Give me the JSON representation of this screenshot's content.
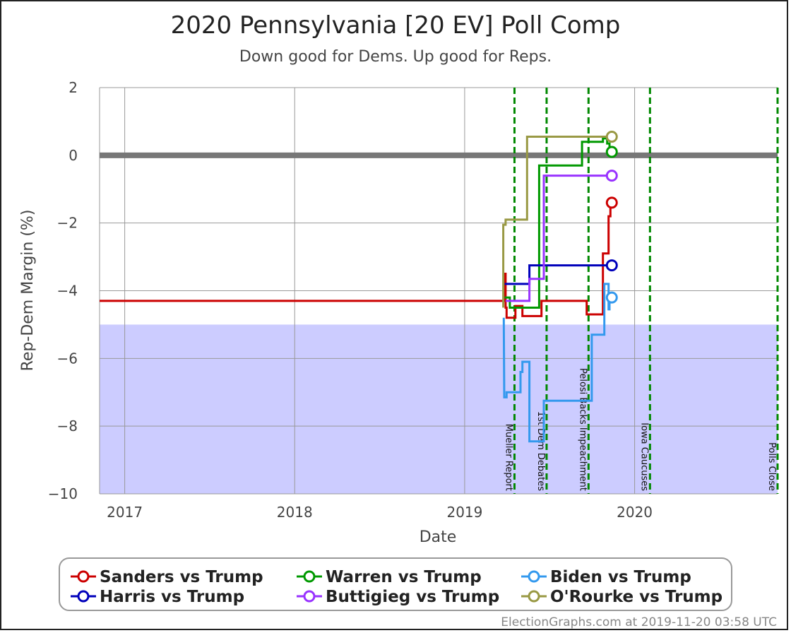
{
  "chart_data": {
    "type": "line",
    "title": "2020 Pennsylvania [20 EV] Poll Comp",
    "subtitle": "Down good for Dems. Up good for Reps.",
    "xlabel": "Date",
    "ylabel": "Rep-Dem Margin (%)",
    "xlim": [
      "2016-11-08",
      "2020-11-03"
    ],
    "ylim": [
      -10,
      2
    ],
    "x_ticks": [
      {
        "date": "2017-01-01",
        "label": "2017"
      },
      {
        "date": "2018-01-01",
        "label": "2018"
      },
      {
        "date": "2019-01-01",
        "label": "2019"
      },
      {
        "date": "2020-01-01",
        "label": "2020"
      }
    ],
    "y_ticks": [
      {
        "value": 2,
        "label": "2"
      },
      {
        "value": 0,
        "label": "0"
      },
      {
        "value": -2,
        "label": "−2"
      },
      {
        "value": -4,
        "label": "−4"
      },
      {
        "value": -6,
        "label": "−6"
      },
      {
        "value": -8,
        "label": "−8"
      },
      {
        "value": -10,
        "label": "−10"
      }
    ],
    "shaded_region": {
      "from": -10,
      "to": -5,
      "color": "#ccccff"
    },
    "zero_line_color": "#777777",
    "grid": true,
    "events": [
      {
        "date": "2019-04-18",
        "label": "Mueller Report"
      },
      {
        "date": "2019-06-26",
        "label": "1st Dem Debates"
      },
      {
        "date": "2019-09-24",
        "label": "Pelosi Backs Impeachment"
      },
      {
        "date": "2020-02-03",
        "label": "Iowa Caucuses"
      },
      {
        "date": "2020-11-03",
        "label": "Polls Close"
      }
    ],
    "event_color": "#008800",
    "series": [
      {
        "name": "Sanders vs Trump",
        "color": "#cc0000",
        "points": [
          [
            "2016-11-08",
            -4.3
          ],
          [
            "2019-03-26",
            -4.3
          ],
          [
            "2019-03-26",
            -3.5
          ],
          [
            "2019-03-30",
            -3.5
          ],
          [
            "2019-03-30",
            -4.5
          ],
          [
            "2019-04-01",
            -4.5
          ],
          [
            "2019-04-01",
            -4.8
          ],
          [
            "2019-04-20",
            -4.8
          ],
          [
            "2019-04-20",
            -4.45
          ],
          [
            "2019-05-05",
            -4.45
          ],
          [
            "2019-05-05",
            -4.75
          ],
          [
            "2019-06-15",
            -4.75
          ],
          [
            "2019-06-15",
            -4.3
          ],
          [
            "2019-09-20",
            -4.3
          ],
          [
            "2019-09-20",
            -4.7
          ],
          [
            "2019-10-25",
            -4.7
          ],
          [
            "2019-10-25",
            -2.9
          ],
          [
            "2019-11-06",
            -2.9
          ],
          [
            "2019-11-06",
            -1.8
          ],
          [
            "2019-11-10",
            -1.8
          ],
          [
            "2019-11-10",
            -1.4
          ],
          [
            "2019-11-13",
            -1.4
          ]
        ]
      },
      {
        "name": "Warren vs Trump",
        "color": "#009900",
        "points": [
          [
            "2019-03-28",
            -4.2
          ],
          [
            "2019-04-08",
            -4.2
          ],
          [
            "2019-04-08",
            -4.5
          ],
          [
            "2019-06-10",
            -4.5
          ],
          [
            "2019-06-10",
            -0.3
          ],
          [
            "2019-09-10",
            -0.3
          ],
          [
            "2019-09-10",
            0.4
          ],
          [
            "2019-10-25",
            0.4
          ],
          [
            "2019-10-25",
            0.5
          ],
          [
            "2019-11-03",
            0.5
          ],
          [
            "2019-11-03",
            0.35
          ],
          [
            "2019-11-08",
            0.35
          ],
          [
            "2019-11-08",
            0.1
          ],
          [
            "2019-11-13",
            0.1
          ]
        ]
      },
      {
        "name": "Biden vs Trump",
        "color": "#3399ee",
        "points": [
          [
            "2019-03-26",
            -4.8
          ],
          [
            "2019-03-27",
            -7.15
          ],
          [
            "2019-04-01",
            -7.15
          ],
          [
            "2019-04-01",
            -7.0
          ],
          [
            "2019-05-01",
            -7.0
          ],
          [
            "2019-05-01",
            -6.4
          ],
          [
            "2019-05-05",
            -6.4
          ],
          [
            "2019-05-05",
            -6.1
          ],
          [
            "2019-05-20",
            -6.1
          ],
          [
            "2019-05-20",
            -8.45
          ],
          [
            "2019-06-20",
            -8.45
          ],
          [
            "2019-06-20",
            -7.25
          ],
          [
            "2019-10-01",
            -7.25
          ],
          [
            "2019-10-01",
            -5.3
          ],
          [
            "2019-10-28",
            -5.3
          ],
          [
            "2019-10-28",
            -3.8
          ],
          [
            "2019-11-06",
            -3.8
          ],
          [
            "2019-11-06",
            -4.55
          ],
          [
            "2019-11-08",
            -4.55
          ],
          [
            "2019-11-08",
            -4.3
          ],
          [
            "2019-11-13",
            -4.2
          ]
        ]
      },
      {
        "name": "Harris vs Trump",
        "color": "#0000bb",
        "points": [
          [
            "2019-03-28",
            -3.8
          ],
          [
            "2019-05-20",
            -3.8
          ],
          [
            "2019-05-20",
            -3.25
          ],
          [
            "2019-11-13",
            -3.25
          ]
        ]
      },
      {
        "name": "Buttigieg vs Trump",
        "color": "#9933ff",
        "points": [
          [
            "2019-03-30",
            -4.3
          ],
          [
            "2019-05-20",
            -4.3
          ],
          [
            "2019-05-20",
            -3.65
          ],
          [
            "2019-06-20",
            -3.65
          ],
          [
            "2019-06-20",
            -0.6
          ],
          [
            "2019-11-13",
            -0.6
          ]
        ]
      },
      {
        "name": "O'Rourke vs Trump",
        "color": "#999944",
        "points": [
          [
            "2019-03-25",
            -4.5
          ],
          [
            "2019-03-25",
            -2.05
          ],
          [
            "2019-03-30",
            -2.05
          ],
          [
            "2019-03-30",
            -1.9
          ],
          [
            "2019-05-15",
            -1.9
          ],
          [
            "2019-05-15",
            0.55
          ],
          [
            "2019-11-13",
            0.55
          ]
        ]
      }
    ],
    "legend": {
      "placement": "bottom",
      "entries": [
        {
          "label": "Sanders vs Trump",
          "color": "#cc0000"
        },
        {
          "label": "Warren vs Trump",
          "color": "#009900"
        },
        {
          "label": "Biden vs Trump",
          "color": "#3399ee"
        },
        {
          "label": "Harris vs Trump",
          "color": "#0000bb"
        },
        {
          "label": "Buttigieg vs Trump",
          "color": "#9933ff"
        },
        {
          "label": "O'Rourke vs Trump",
          "color": "#999944"
        }
      ]
    }
  },
  "footer": "ElectionGraphs.com at 2019-11-20 03:58 UTC"
}
